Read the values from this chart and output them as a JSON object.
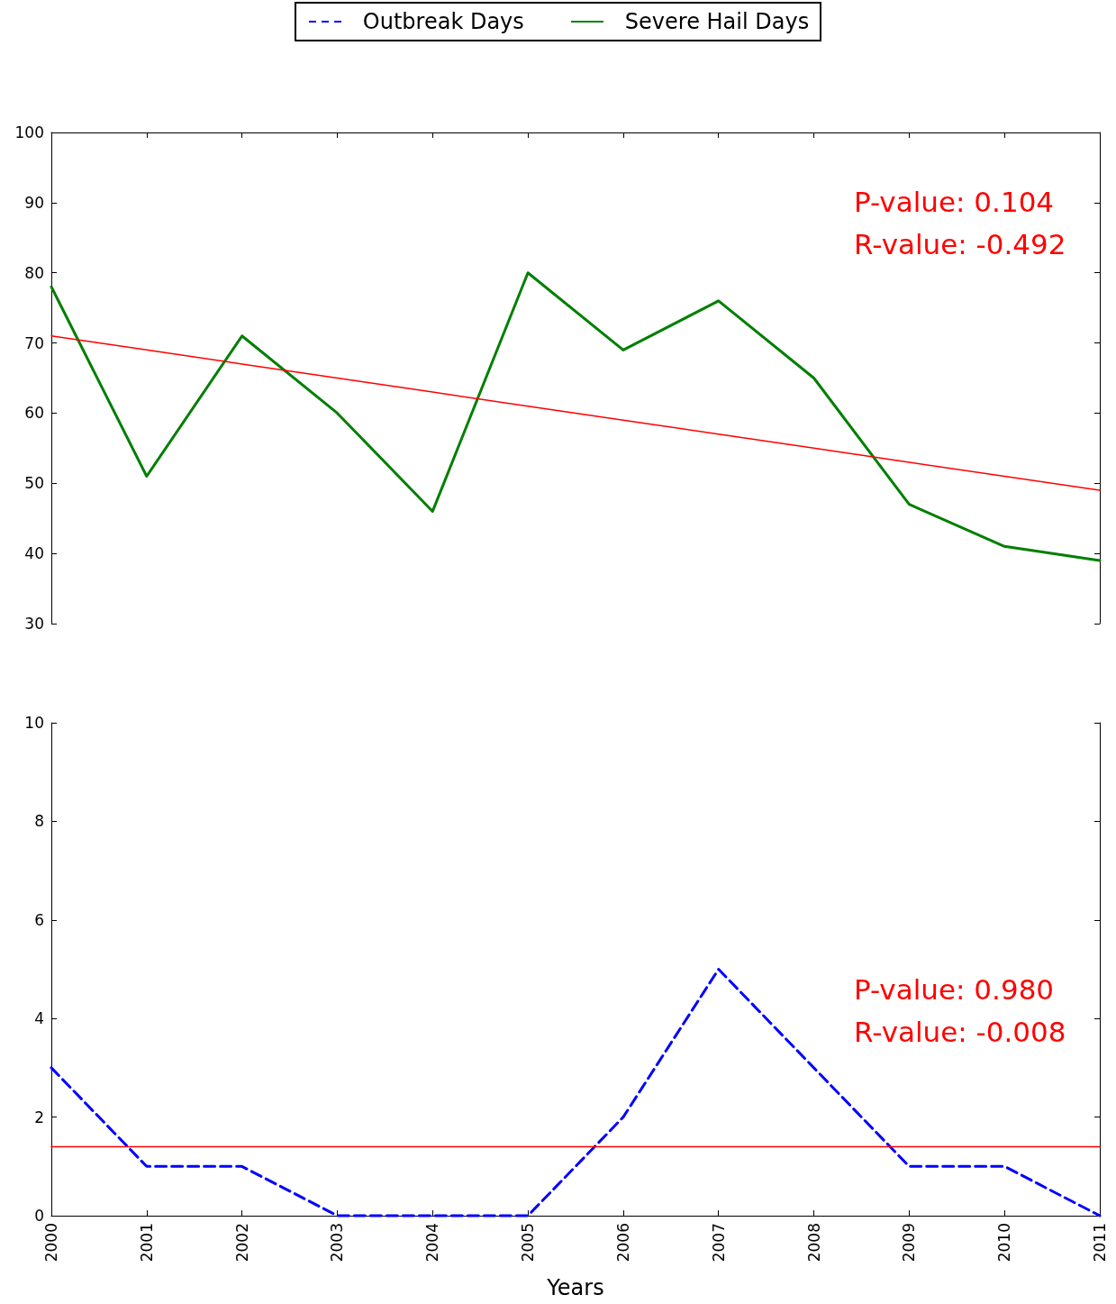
{
  "chart_data": [
    {
      "type": "line",
      "legend": "top",
      "grid": false,
      "marker": "none",
      "tick_labels": "y",
      "xlim": [
        2000,
        2011
      ],
      "xticks": [
        2000,
        2001,
        2002,
        2003,
        2004,
        2005,
        2006,
        2007,
        2008,
        2009,
        2010,
        2011
      ],
      "ylim": [
        30,
        100
      ],
      "yticks": [
        30,
        40,
        50,
        60,
        70,
        80,
        90,
        100
      ],
      "x": [
        2000,
        2001,
        2002,
        2003,
        2004,
        2005,
        2006,
        2007,
        2008,
        2009,
        2010,
        2011
      ],
      "annotations": [
        "P-value: 0.104",
        "R-value: -0.492"
      ],
      "series": [
        {
          "name": "Severe Hail Days",
          "color": "#007f00",
          "line_style": "solid",
          "values": [
            78,
            51,
            71,
            60,
            46,
            80,
            69,
            76,
            65,
            47,
            41,
            39
          ]
        },
        {
          "type": "line",
          "color": "#ff0000",
          "line_style": "solid",
          "values": [
            71,
            69,
            67,
            65,
            63,
            61,
            59,
            57,
            55,
            53,
            51,
            49
          ]
        }
      ]
    },
    {
      "type": "line",
      "legend": "top",
      "grid": false,
      "marker": "none",
      "xlabel": "Years",
      "xlim": [
        2000,
        2011
      ],
      "xticks": [
        2000,
        2001,
        2002,
        2003,
        2004,
        2005,
        2006,
        2007,
        2008,
        2009,
        2010,
        2011
      ],
      "ylim": [
        0,
        10
      ],
      "yticks": [
        0,
        2,
        4,
        6,
        8,
        10
      ],
      "x": [
        2000,
        2001,
        2002,
        2003,
        2004,
        2005,
        2006,
        2007,
        2008,
        2009,
        2010,
        2011
      ],
      "annotations": [
        "P-value: 0.980",
        "R-value: -0.008"
      ],
      "series": [
        {
          "name": "Outbreak Days",
          "color": "#0000ff",
          "line_style": "dashed",
          "values": [
            3,
            1,
            1,
            0,
            0,
            0,
            2,
            5,
            3,
            1,
            1,
            0
          ]
        },
        {
          "type": "line",
          "color": "#ff0000",
          "line_style": "solid",
          "values": [
            1.4,
            1.4,
            1.4,
            1.4,
            1.4,
            1.4,
            1.4,
            1.4,
            1.4,
            1.4,
            1.4,
            1.4
          ]
        }
      ]
    }
  ]
}
